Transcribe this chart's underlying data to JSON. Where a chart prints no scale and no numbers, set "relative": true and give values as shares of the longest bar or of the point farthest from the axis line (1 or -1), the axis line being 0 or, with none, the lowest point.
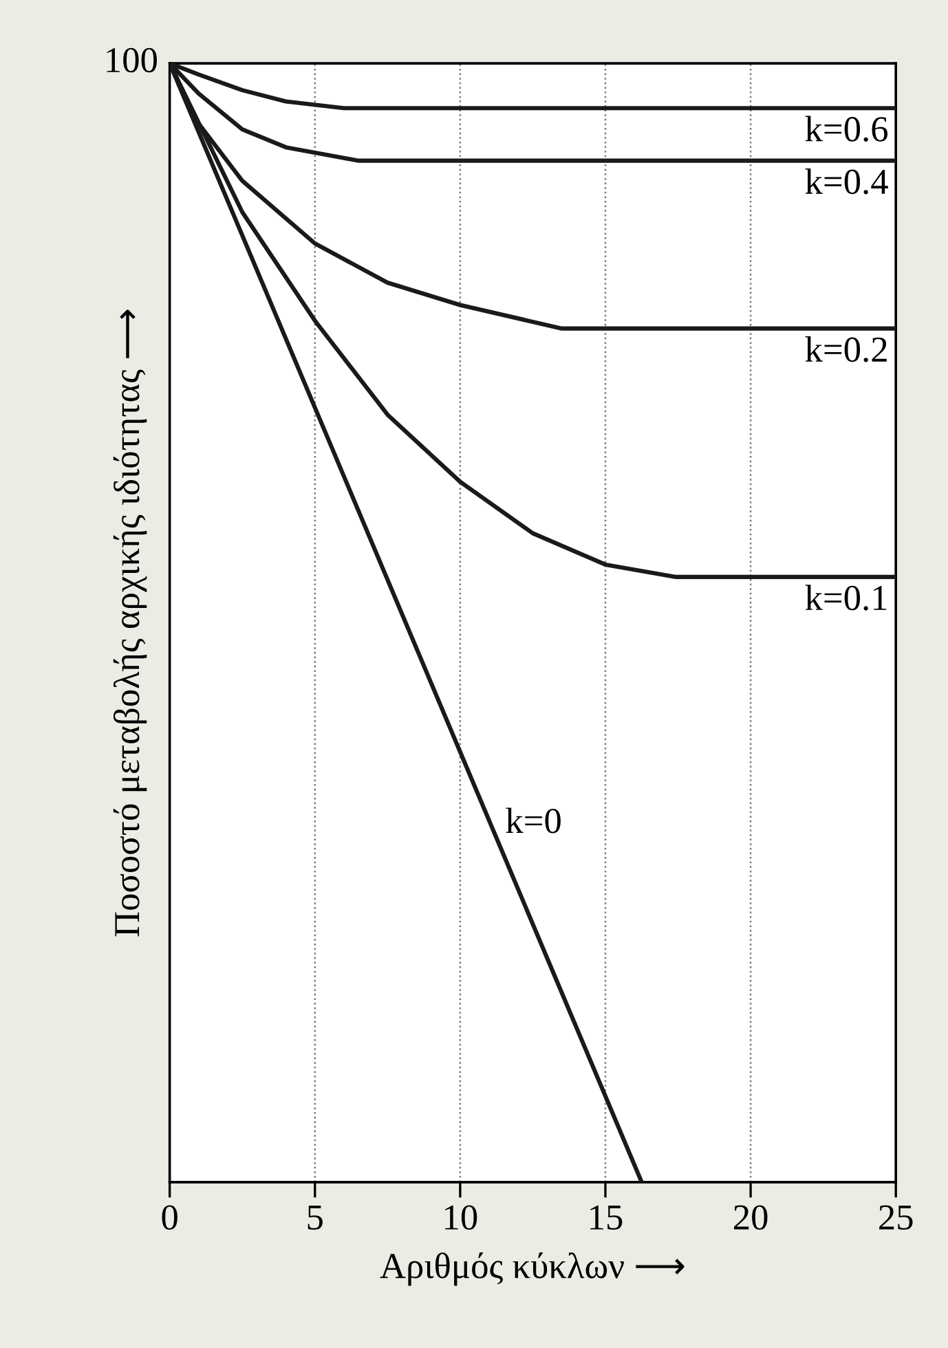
{
  "chart_data": {
    "type": "line",
    "relative": true,
    "xlabel": "Αριθμός κύκλων ⟶",
    "ylabel": "Ποσοστό μεταβολής αρχικής ιδιότητας ⟶",
    "xlim": [
      0,
      25
    ],
    "xticks": [
      0,
      5,
      10,
      15,
      20,
      25
    ],
    "grid": "x",
    "line_style": "solid",
    "marker": "none",
    "annotations": [
      {
        "text": "100",
        "x": 0,
        "y": 1
      }
    ],
    "series": [
      {
        "name": "k=0.6",
        "color": "#1a1a1a",
        "x": [
          0,
          1,
          2.5,
          4,
          6,
          25
        ],
        "values": [
          1,
          0.99,
          0.976,
          0.966,
          0.96,
          0.96
        ]
      },
      {
        "name": "k=0.4",
        "color": "#1a1a1a",
        "x": [
          0,
          1,
          2.5,
          4,
          6.5,
          25
        ],
        "values": [
          1,
          0.973,
          0.941,
          0.925,
          0.913,
          0.913
        ]
      },
      {
        "name": "k=0.2",
        "color": "#1a1a1a",
        "x": [
          0,
          1,
          2.5,
          5,
          7.5,
          10,
          13.5,
          25
        ],
        "values": [
          1,
          0.946,
          0.895,
          0.839,
          0.804,
          0.784,
          0.763,
          0.763
        ]
      },
      {
        "name": "k=0.1",
        "color": "#1a1a1a",
        "x": [
          0,
          2.5,
          5,
          7.5,
          10,
          12.5,
          15,
          17.4,
          25
        ],
        "values": [
          1,
          0.867,
          0.77,
          0.686,
          0.626,
          0.58,
          0.552,
          0.541,
          0.541
        ]
      },
      {
        "name": "k=0",
        "color": "#1a1a1a",
        "x": [
          0,
          16.25
        ],
        "values": [
          1,
          0
        ]
      }
    ]
  }
}
